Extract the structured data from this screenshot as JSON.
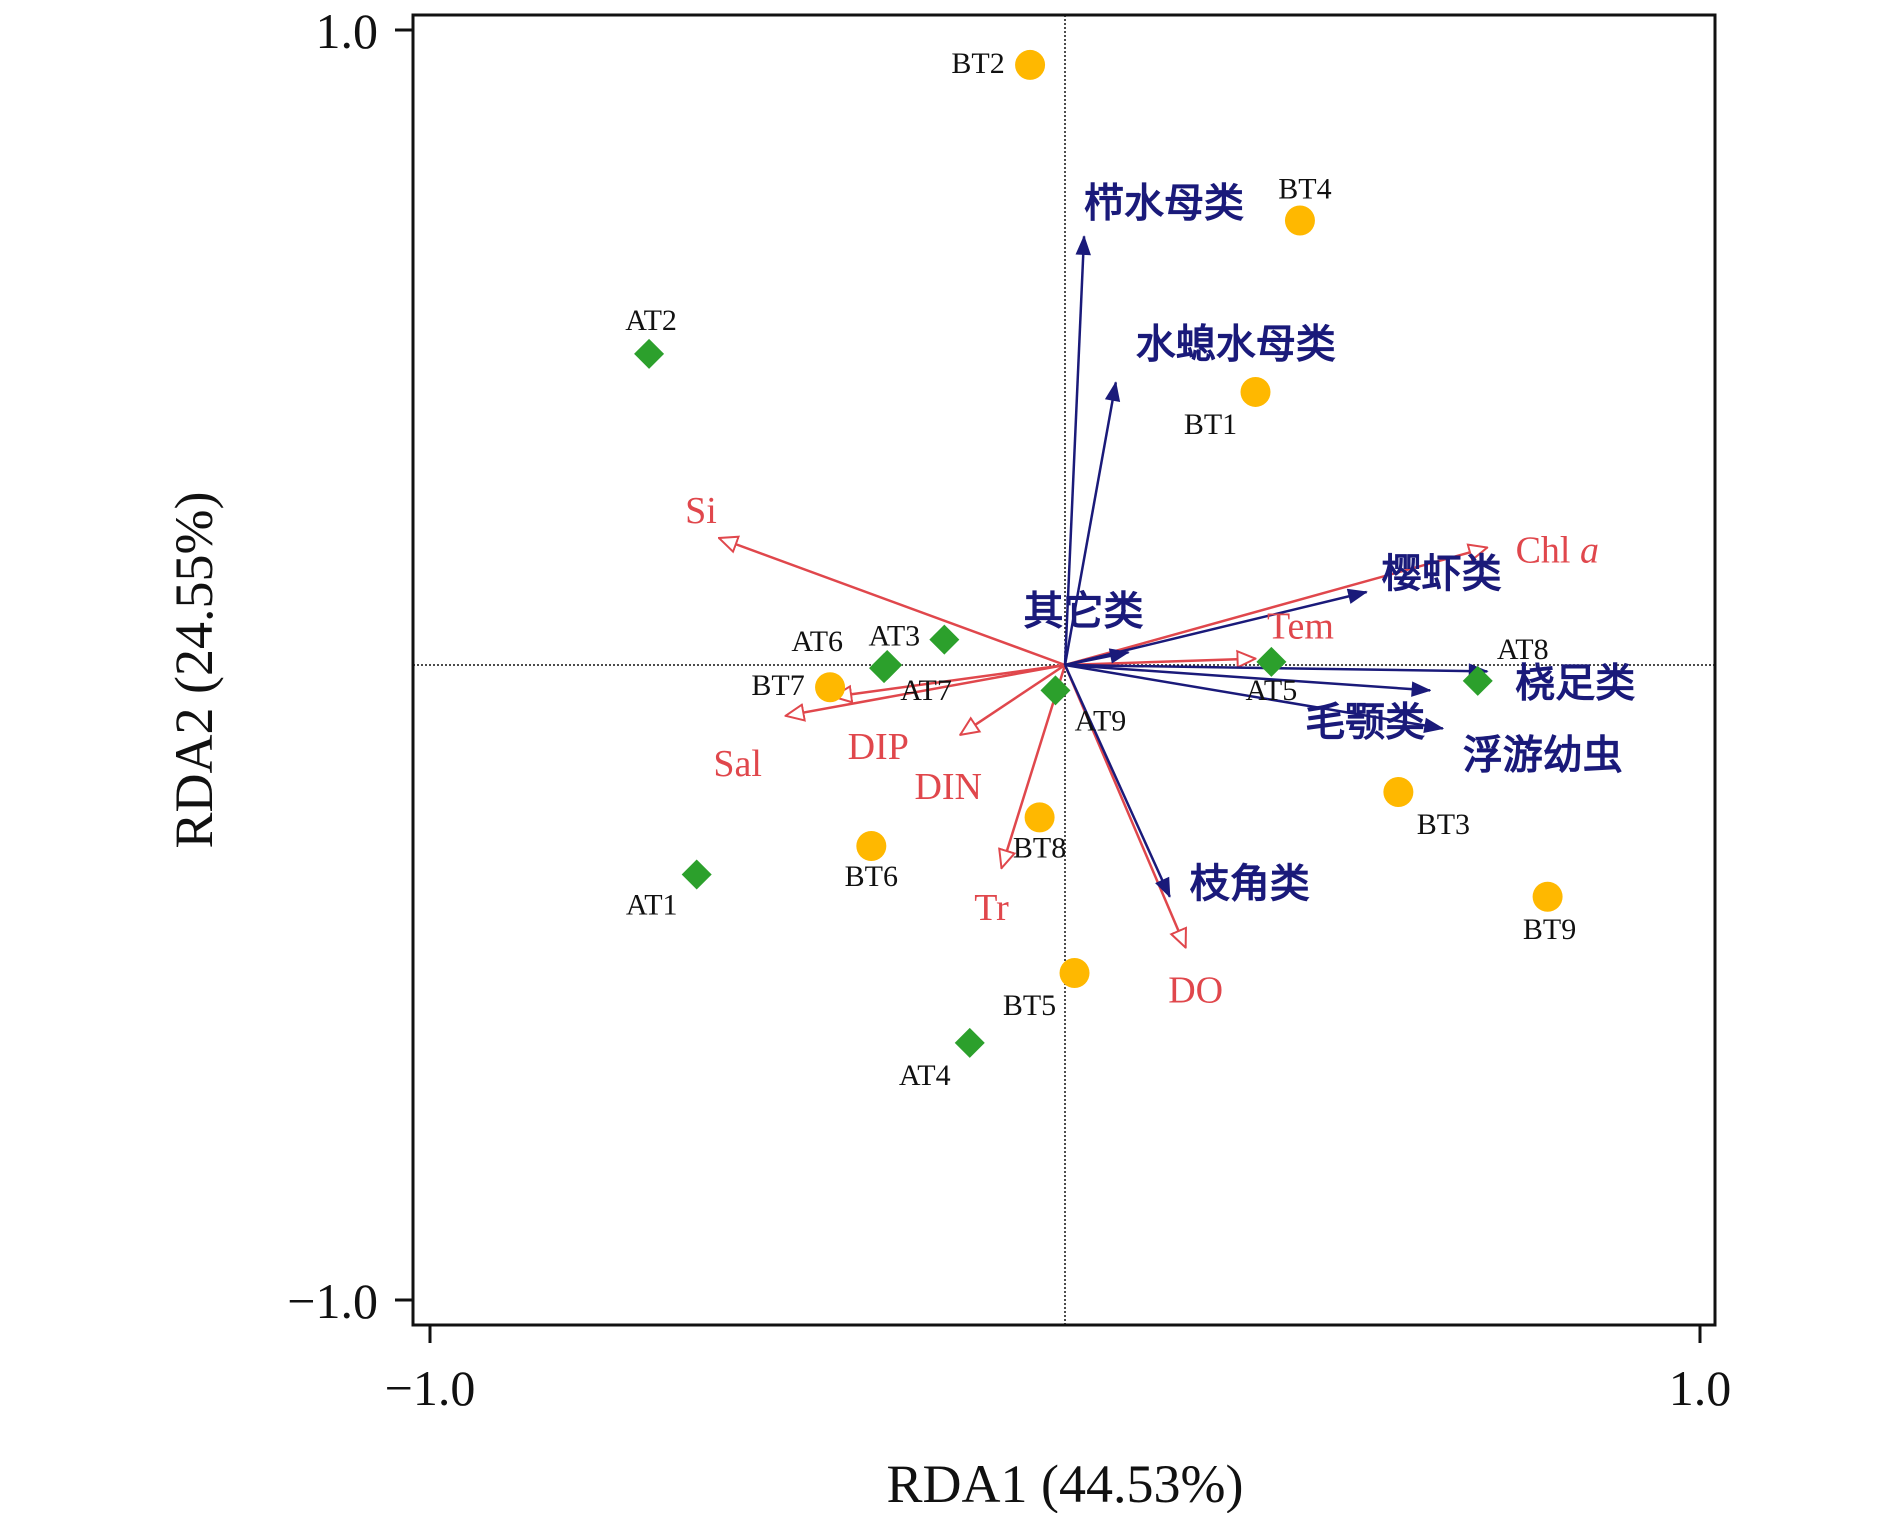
{
  "chart_data": {
    "type": "scatter",
    "xlabel": "RDA1 (44.53%)",
    "ylabel": "RDA2 (24.55%)",
    "xlim": [
      -1.0,
      1.0
    ],
    "ylim": [
      -1.0,
      1.0
    ],
    "xticks": [
      "−1.0",
      "1.0"
    ],
    "yticks": [
      "1.0",
      "−1.0"
    ],
    "colors": {
      "A_sites": "#2ca02c",
      "B_sites": "#ffb800",
      "env_arrows": "#e0474c",
      "group_arrows": "#1a1a7a"
    },
    "series": [
      {
        "name": "AT",
        "marker": "diamond",
        "points": [
          {
            "label": "AT1",
            "x": -0.58,
            "y": -0.33
          },
          {
            "label": "AT2",
            "x": -0.655,
            "y": 0.49
          },
          {
            "label": "AT3",
            "x": -0.19,
            "y": 0.04
          },
          {
            "label": "AT4",
            "x": -0.15,
            "y": -0.595
          },
          {
            "label": "AT5",
            "x": 0.325,
            "y": 0.005
          },
          {
            "label": "AT6",
            "x": -0.28,
            "y": 0.0
          },
          {
            "label": "AT7",
            "x": -0.285,
            "y": -0.005
          },
          {
            "label": "AT8",
            "x": 0.65,
            "y": -0.025
          },
          {
            "label": "AT9",
            "x": -0.015,
            "y": -0.04
          }
        ]
      },
      {
        "name": "BT",
        "marker": "circle",
        "points": [
          {
            "label": "BT1",
            "x": 0.3,
            "y": 0.43
          },
          {
            "label": "BT2",
            "x": -0.055,
            "y": 0.945
          },
          {
            "label": "BT3",
            "x": 0.525,
            "y": -0.2
          },
          {
            "label": "BT4",
            "x": 0.37,
            "y": 0.7
          },
          {
            "label": "BT5",
            "x": 0.015,
            "y": -0.485
          },
          {
            "label": "BT6",
            "x": -0.305,
            "y": -0.285
          },
          {
            "label": "BT7",
            "x": -0.37,
            "y": -0.035
          },
          {
            "label": "BT8",
            "x": -0.04,
            "y": -0.24
          },
          {
            "label": "BT9",
            "x": 0.76,
            "y": -0.365
          }
        ]
      }
    ],
    "env_vectors": [
      {
        "label": "Si",
        "x": -0.545,
        "y": 0.2
      },
      {
        "label": "Chl a",
        "x": 0.665,
        "y": 0.185
      },
      {
        "label": "Tem",
        "x": 0.3,
        "y": 0.01
      },
      {
        "label": "Sal",
        "x": -0.44,
        "y": -0.08
      },
      {
        "label": "DIP",
        "x": -0.365,
        "y": -0.05
      },
      {
        "label": "DIN",
        "x": -0.165,
        "y": -0.11
      },
      {
        "label": "Tr",
        "x": -0.1,
        "y": -0.32
      },
      {
        "label": "DO",
        "x": 0.19,
        "y": -0.445
      }
    ],
    "group_vectors": [
      {
        "label": "栉水母类",
        "x": 0.03,
        "y": 0.675
      },
      {
        "label": "水螅水母类",
        "x": 0.08,
        "y": 0.445
      },
      {
        "label": "其它类",
        "x": 0.1,
        "y": 0.02
      },
      {
        "label": "樱虾类",
        "x": 0.475,
        "y": 0.115
      },
      {
        "label": "桡足类",
        "x": 0.665,
        "y": -0.01
      },
      {
        "label": "毛颚类",
        "x": 0.575,
        "y": -0.04
      },
      {
        "label": "浮游幼虫",
        "x": 0.595,
        "y": -0.1
      },
      {
        "label": "枝角类",
        "x": 0.165,
        "y": -0.365
      }
    ]
  }
}
